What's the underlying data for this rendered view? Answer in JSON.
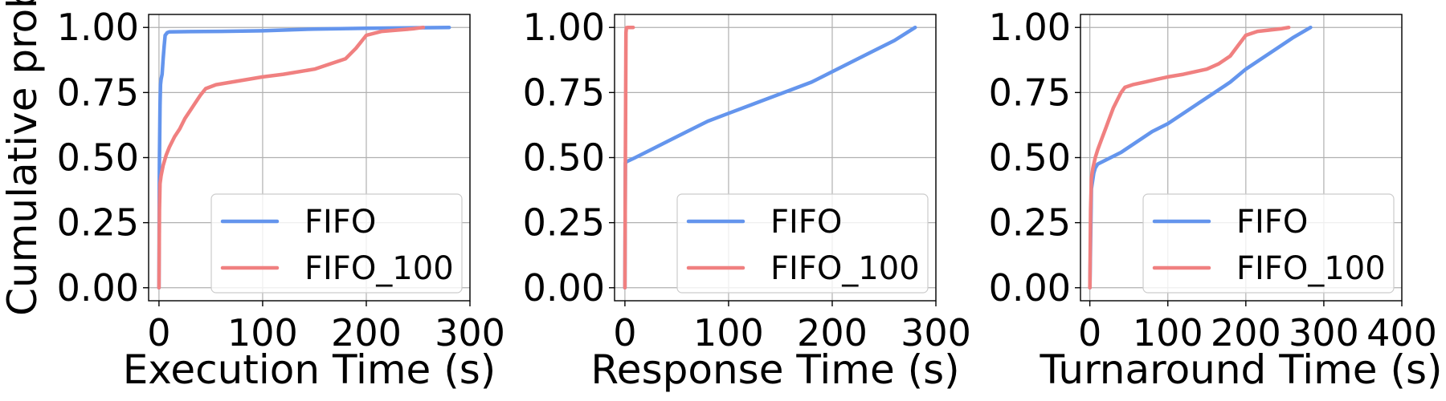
{
  "colors": {
    "FIFO": "#6495ED",
    "FIFO_100": "#F08080"
  },
  "chart_data": [
    {
      "type": "line",
      "title": "",
      "xlabel": "Execution Time (s)",
      "ylabel": "Cumulative prob",
      "xlim": [
        -10,
        300
      ],
      "ylim": [
        -0.05,
        1.05
      ],
      "xticks": [
        0,
        100,
        200,
        300
      ],
      "yticks": [
        0.0,
        0.25,
        0.5,
        0.75,
        1.0
      ],
      "xtick_labels": [
        "0",
        "100",
        "200",
        "300"
      ],
      "ytick_labels": [
        "0.00",
        "0.25",
        "0.50",
        "0.75",
        "1.00"
      ],
      "grid": true,
      "legend": "lower-right",
      "series": [
        {
          "name": "FIFO",
          "x": [
            0,
            0.3,
            0.5,
            1,
            1.5,
            2,
            3,
            4,
            5,
            6,
            8,
            10,
            30,
            60,
            100,
            150,
            200,
            250,
            280
          ],
          "y": [
            0,
            0.4,
            0.5,
            0.7,
            0.78,
            0.8,
            0.82,
            0.88,
            0.93,
            0.97,
            0.98,
            0.983,
            0.984,
            0.985,
            0.987,
            0.994,
            0.997,
            0.999,
            1.0
          ]
        },
        {
          "name": "FIFO_100",
          "x": [
            0,
            0.5,
            1,
            2,
            4,
            7,
            10,
            15,
            20,
            25,
            30,
            35,
            40,
            45,
            55,
            70,
            85,
            100,
            120,
            150,
            165,
            180,
            190,
            200,
            215,
            230,
            245,
            255
          ],
          "y": [
            0,
            0.3,
            0.4,
            0.43,
            0.47,
            0.51,
            0.54,
            0.58,
            0.61,
            0.65,
            0.68,
            0.71,
            0.74,
            0.765,
            0.78,
            0.79,
            0.8,
            0.81,
            0.82,
            0.84,
            0.86,
            0.88,
            0.92,
            0.97,
            0.985,
            0.99,
            0.995,
            1.0
          ]
        }
      ]
    },
    {
      "type": "line",
      "title": "",
      "xlabel": "Response Time (s)",
      "ylabel": "",
      "xlim": [
        -10,
        300
      ],
      "ylim": [
        -0.05,
        1.05
      ],
      "xticks": [
        0,
        100,
        200,
        300
      ],
      "yticks": [
        0.0,
        0.25,
        0.5,
        0.75,
        1.0
      ],
      "xtick_labels": [
        "0",
        "100",
        "200",
        "300"
      ],
      "ytick_labels": [
        "0.00",
        "0.25",
        "0.50",
        "0.75",
        "1.00"
      ],
      "grid": true,
      "legend": "lower-right",
      "series": [
        {
          "name": "FIFO",
          "x": [
            0,
            0.5,
            2,
            10,
            25,
            40,
            60,
            80,
            100,
            120,
            140,
            160,
            180,
            200,
            220,
            240,
            260,
            280
          ],
          "y": [
            0,
            0.48,
            0.485,
            0.5,
            0.53,
            0.56,
            0.6,
            0.64,
            0.67,
            0.7,
            0.73,
            0.76,
            0.79,
            0.83,
            0.87,
            0.91,
            0.95,
            1.0
          ]
        },
        {
          "name": "FIFO_100",
          "x": [
            0,
            0.5,
            1,
            1.5,
            3,
            5,
            8
          ],
          "y": [
            0,
            0.5,
            0.98,
            0.999,
            1.0,
            1.0,
            1.0
          ]
        }
      ]
    },
    {
      "type": "line",
      "title": "",
      "xlabel": "Turnaround Time (s)",
      "ylabel": "",
      "xlim": [
        -12,
        400
      ],
      "ylim": [
        -0.05,
        1.05
      ],
      "xticks": [
        0,
        100,
        200,
        300,
        400
      ],
      "yticks": [
        0.0,
        0.25,
        0.5,
        0.75,
        1.0
      ],
      "xtick_labels": [
        "0",
        "100",
        "200",
        "300",
        "400"
      ],
      "ytick_labels": [
        "0.00",
        "0.25",
        "0.50",
        "0.75",
        "1.00"
      ],
      "grid": true,
      "legend": "lower-right",
      "series": [
        {
          "name": "FIFO",
          "x": [
            0,
            2,
            5,
            7,
            10,
            20,
            40,
            60,
            80,
            100,
            120,
            140,
            160,
            180,
            200,
            220,
            240,
            260,
            283
          ],
          "y": [
            0,
            0.38,
            0.44,
            0.46,
            0.475,
            0.49,
            0.52,
            0.56,
            0.6,
            0.63,
            0.67,
            0.71,
            0.75,
            0.79,
            0.84,
            0.88,
            0.92,
            0.96,
            1.0
          ]
        },
        {
          "name": "FIFO_100",
          "x": [
            0,
            1,
            2,
            4,
            7,
            10,
            15,
            20,
            25,
            30,
            35,
            40,
            45,
            55,
            70,
            85,
            100,
            120,
            150,
            165,
            180,
            190,
            200,
            215,
            230,
            245,
            255
          ],
          "y": [
            0,
            0.3,
            0.42,
            0.46,
            0.5,
            0.53,
            0.57,
            0.61,
            0.65,
            0.69,
            0.72,
            0.75,
            0.77,
            0.78,
            0.79,
            0.8,
            0.81,
            0.82,
            0.84,
            0.86,
            0.89,
            0.93,
            0.97,
            0.985,
            0.99,
            0.995,
            1.0
          ]
        }
      ]
    }
  ]
}
